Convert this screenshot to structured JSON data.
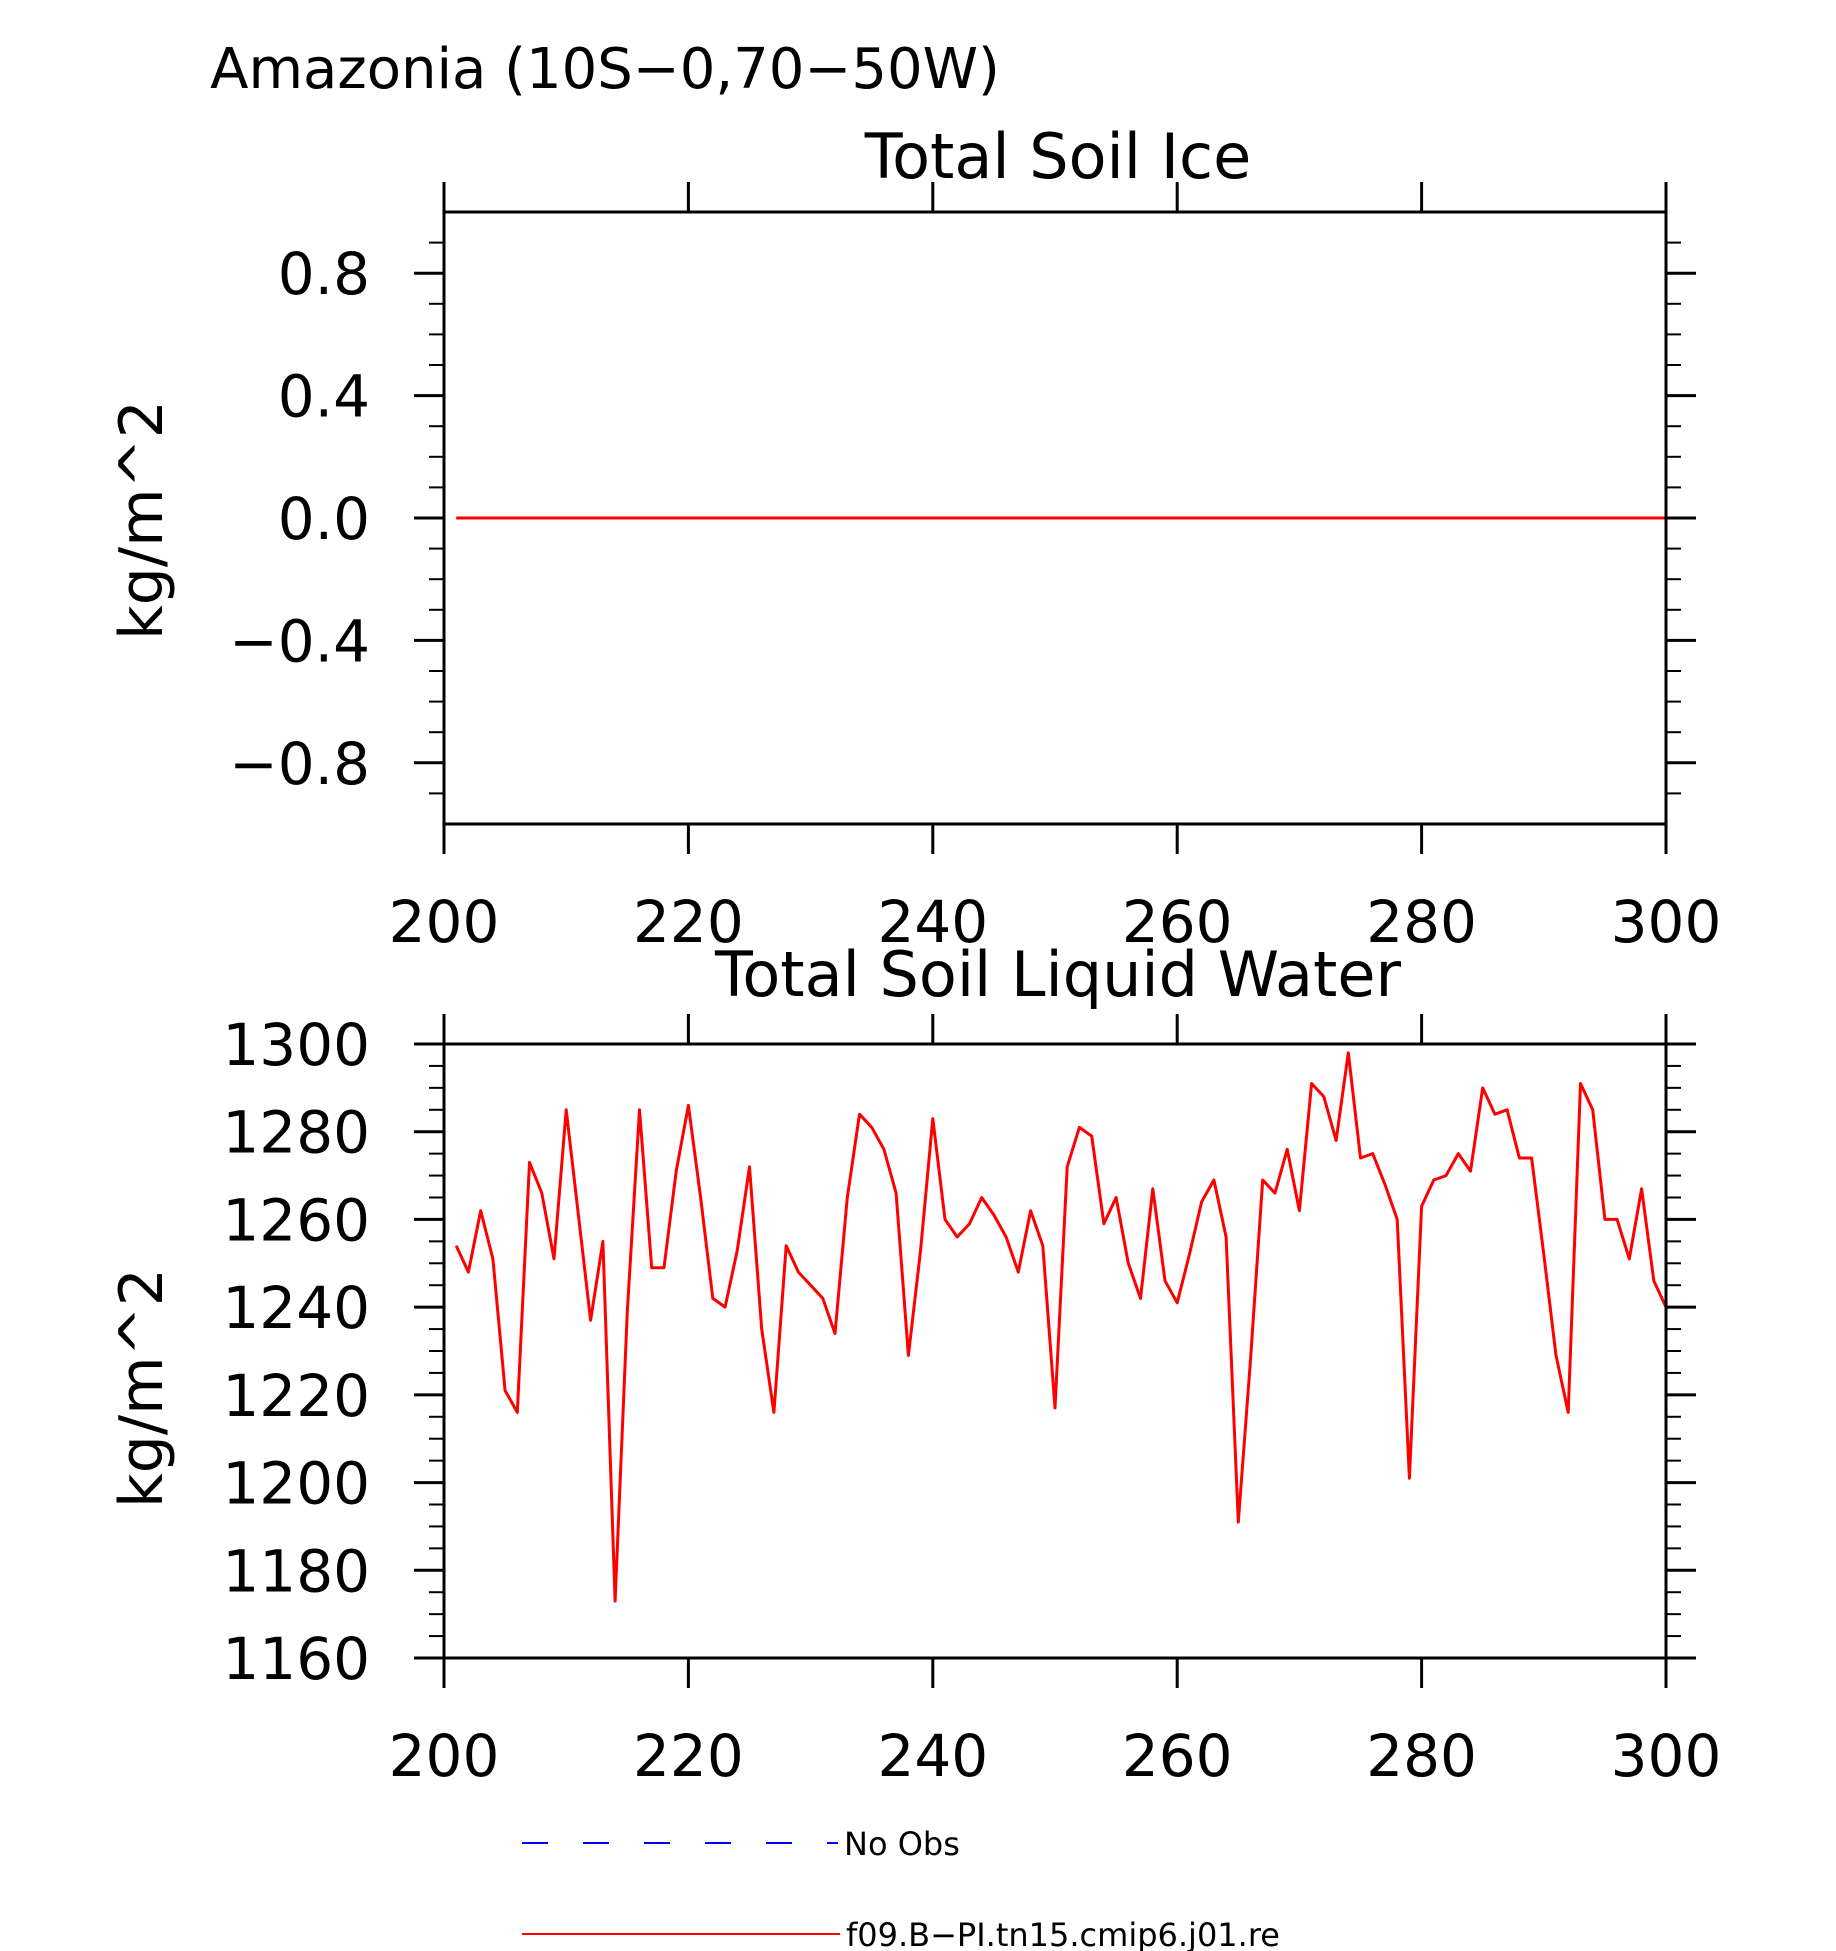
{
  "figure": {
    "title": "Amazonia (10S−0,70−50W)"
  },
  "chart_data": [
    {
      "type": "line",
      "title": "Total Soil Ice",
      "xlabel": "",
      "ylabel": "kg/m^2",
      "xlim": [
        200,
        300
      ],
      "ylim": [
        -1,
        1
      ],
      "x_ticks": [
        200,
        220,
        240,
        260,
        280,
        300
      ],
      "x_tick_labels": [
        "200",
        "220",
        "240",
        "260",
        "280",
        "300"
      ],
      "y_ticks": [
        0.8,
        0.4,
        0.0,
        -0.4,
        -0.8
      ],
      "y_tick_labels": [
        "0.8",
        "0.4",
        "0.0",
        "−0.4",
        "−0.8"
      ],
      "grid": false,
      "series": [
        {
          "name": "f09.B−PI.tn15.cmip6.j01.re",
          "color": "#ff0000",
          "x_start": 201,
          "x_step": 1,
          "values": [
            0,
            0
          ]
        }
      ]
    },
    {
      "type": "line",
      "title": "Total Soil Liquid Water",
      "xlabel": "",
      "ylabel": "kg/m^2",
      "xlim": [
        200,
        300
      ],
      "ylim": [
        1160,
        1300
      ],
      "x_ticks": [
        200,
        220,
        240,
        260,
        280,
        300
      ],
      "x_tick_labels": [
        "200",
        "220",
        "240",
        "260",
        "280",
        "300"
      ],
      "y_ticks": [
        1300,
        1280,
        1260,
        1240,
        1220,
        1200,
        1180,
        1160
      ],
      "y_tick_labels": [
        "1300",
        "1280",
        "1260",
        "1240",
        "1220",
        "1200",
        "1180",
        "1160"
      ],
      "grid": false,
      "series": [
        {
          "name": "f09.B−PI.tn15.cmip6.j01.re",
          "color": "#ff0000",
          "x_start": 201,
          "x_step": 1,
          "values": [
            1254,
            1248,
            1262,
            1251,
            1221,
            1216,
            1273,
            1266,
            1251,
            1285,
            1261,
            1237,
            1255,
            1173,
            1239,
            1285,
            1249,
            1249,
            1271,
            1286,
            1265,
            1242,
            1240,
            1253,
            1272,
            1235,
            1216,
            1254,
            1248,
            1245,
            1242,
            1234,
            1265,
            1284,
            1281,
            1276,
            1266,
            1229,
            1253,
            1283,
            1260,
            1256,
            1259,
            1265,
            1261,
            1256,
            1248,
            1262,
            1254,
            1217,
            1272,
            1281,
            1279,
            1259,
            1265,
            1250,
            1242,
            1267,
            1246,
            1241,
            1252,
            1264,
            1269,
            1256,
            1191,
            1228,
            1269,
            1266,
            1276,
            1262,
            1291,
            1288,
            1278,
            1298,
            1274,
            1275,
            1268,
            1260,
            1201,
            1263,
            1269,
            1270,
            1275,
            1271,
            1290,
            1284,
            1285,
            1274,
            1274,
            1252,
            1229,
            1216,
            1291,
            1285,
            1260,
            1260,
            1251,
            1267,
            1246,
            1240
          ]
        }
      ]
    }
  ],
  "legend": {
    "placement": "bottom",
    "items": [
      {
        "label": "No Obs",
        "color": "#0000ff",
        "style": "dashed"
      },
      {
        "label": "f09.B−PI.tn15.cmip6.j01.re",
        "color": "#ff0000",
        "style": "solid"
      }
    ]
  }
}
